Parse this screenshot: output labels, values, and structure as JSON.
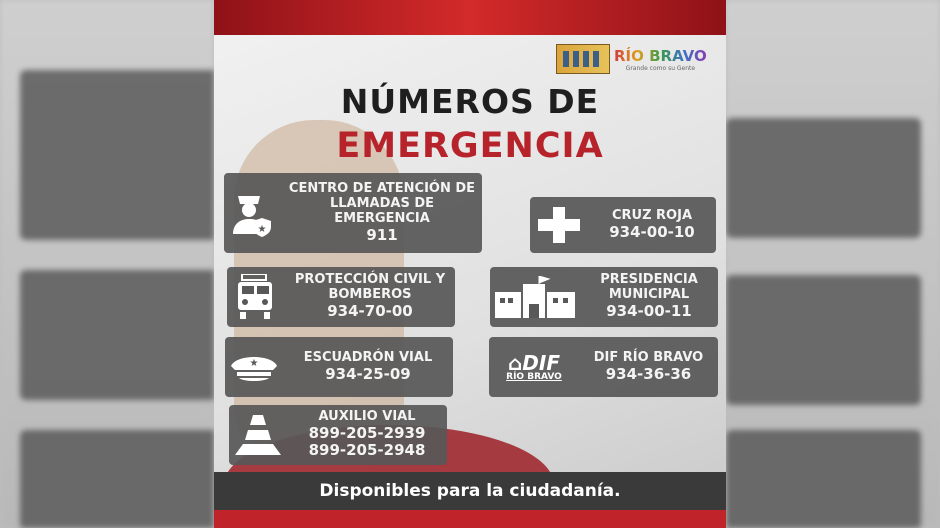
{
  "logo": {
    "name": "RÍO BRAVO",
    "slogan": "Grande como su Gente"
  },
  "title": {
    "line1": "NÚMEROS DE",
    "line2": "EMERGENCIA"
  },
  "contacts": [
    {
      "name": "CENTRO DE ATENCIÓN DE LLAMADAS DE EMERGENCIA",
      "phones": [
        "911"
      ],
      "icon": "police-officer-icon"
    },
    {
      "name": "CRUZ ROJA",
      "phones": [
        "934-00-10"
      ],
      "icon": "medical-cross-icon"
    },
    {
      "name": "PROTECCIÓN CIVIL Y BOMBEROS",
      "phones": [
        "934-70-00"
      ],
      "icon": "fire-truck-icon"
    },
    {
      "name": "PRESIDENCIA MUNICIPAL",
      "phones": [
        "934-00-11"
      ],
      "icon": "municipal-building-icon"
    },
    {
      "name": "ESCUADRÓN VIAL",
      "phones": [
        "934-25-09"
      ],
      "icon": "police-cap-icon"
    },
    {
      "name": "DIF RÍO BRAVO",
      "phones": [
        "934-36-36"
      ],
      "icon": "dif-logo-icon",
      "icon_text": "DIF RÍO BRAVO"
    },
    {
      "name": "AUXILIO VIAL",
      "phones": [
        "899-205-2939",
        "899-205-2948"
      ],
      "icon": "traffic-cone-icon"
    }
  ],
  "footer": "Disponibles para la ciudadanía.",
  "colors": {
    "accent_red": "#b7232b",
    "card_gray": "#585858",
    "banner": "#3a3a3a"
  }
}
